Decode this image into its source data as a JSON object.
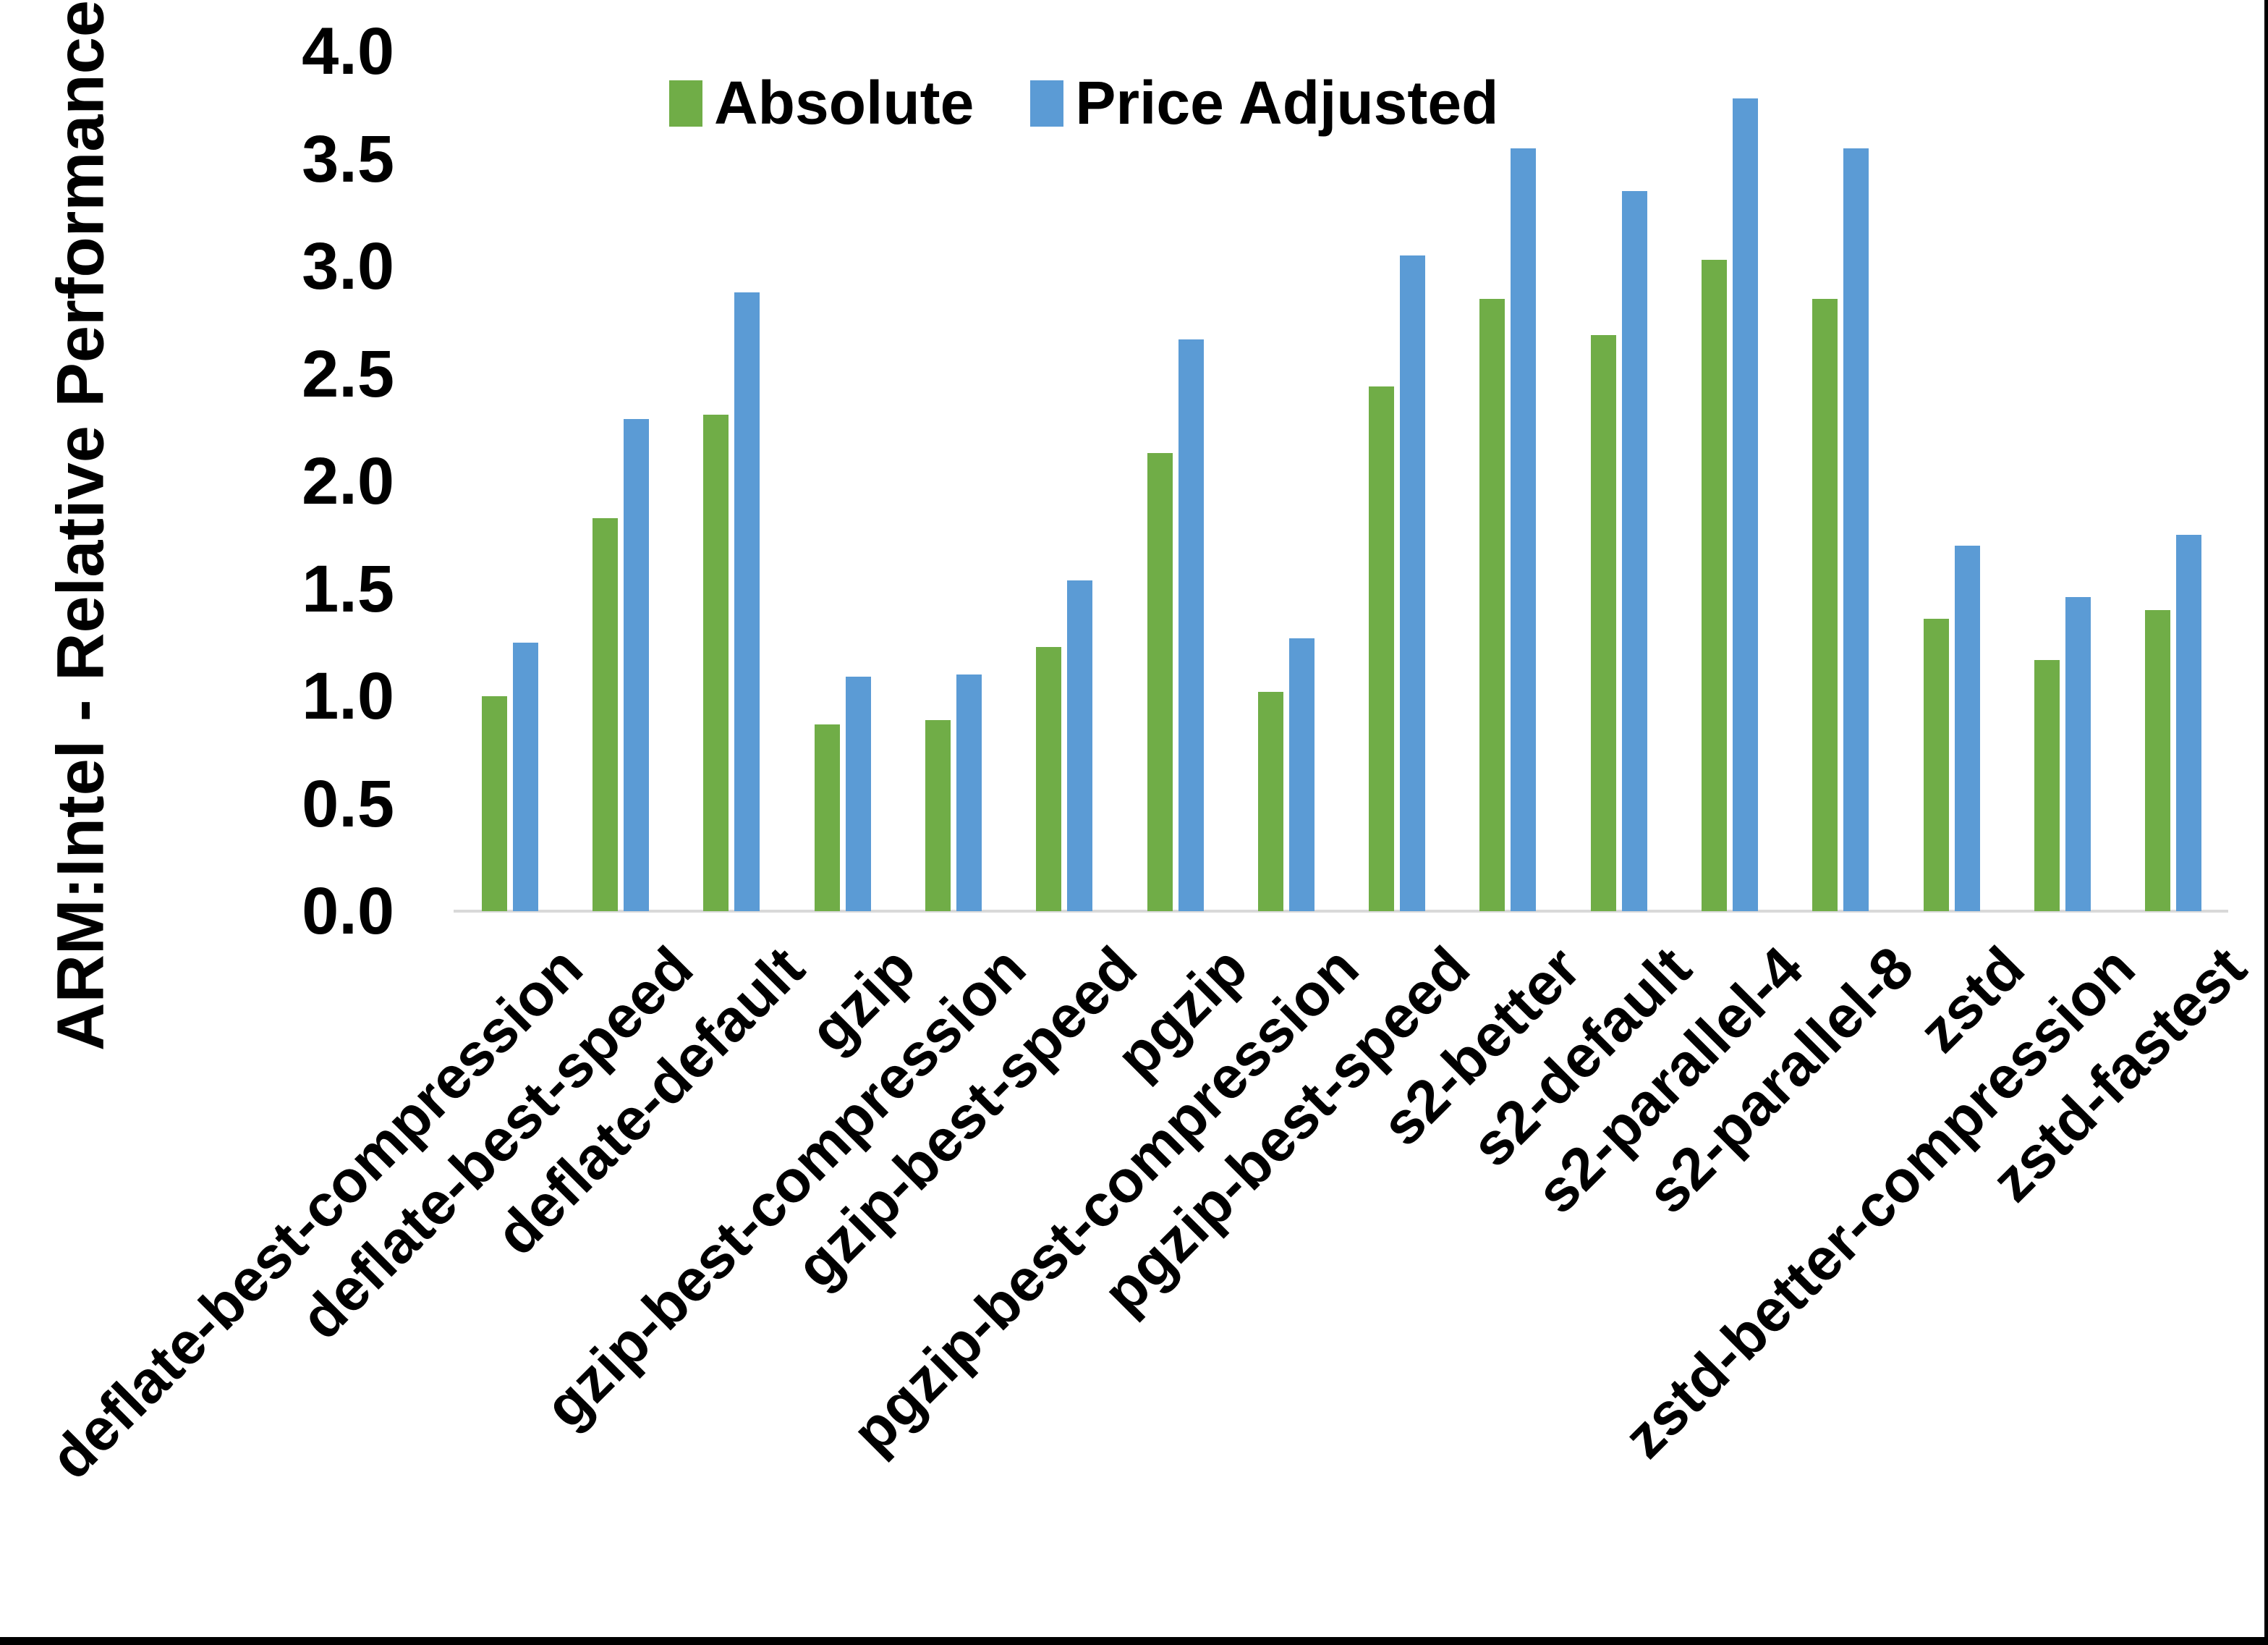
{
  "chart_data": {
    "type": "bar",
    "title": "",
    "xlabel": "",
    "ylabel": "ARM:Intel - Relative Performance",
    "ylim": [
      0.0,
      4.0
    ],
    "ytick_step": 0.5,
    "yticks": [
      "4.0",
      "3.5",
      "3.0",
      "2.5",
      "2.0",
      "1.5",
      "1.0",
      "0.5",
      "0.0"
    ],
    "grid": false,
    "legend_position": "top-center-inside",
    "categories": [
      "deflate-best-compression",
      "deflate-best-speed",
      "deflate-default",
      "gzip",
      "gzip-best-compression",
      "gzip-best-speed",
      "pgzip",
      "pgzip-best-compression",
      "pgzip-best-speed",
      "s2-better",
      "s2-default",
      "s2-parallel-4",
      "s2-parallel-8",
      "zstd",
      "zstd-better-compression",
      "zstd-fastest"
    ],
    "series": [
      {
        "name": "Absolute",
        "color": "#70AD47",
        "values": [
          1.0,
          1.83,
          2.31,
          0.87,
          0.89,
          1.23,
          2.13,
          1.02,
          2.44,
          2.85,
          2.68,
          3.03,
          2.85,
          1.36,
          1.17,
          1.4
        ]
      },
      {
        "name": "Price Adjusted",
        "color": "#5B9BD5",
        "values": [
          1.25,
          2.29,
          2.88,
          1.09,
          1.1,
          1.54,
          2.66,
          1.27,
          3.05,
          3.55,
          3.35,
          3.78,
          3.55,
          1.7,
          1.46,
          1.75
        ]
      }
    ]
  },
  "colors": {
    "background": "#FFFFFF",
    "text": "#000000",
    "axis_line": "#D9D9D9",
    "screenshot_border": "#000000"
  }
}
